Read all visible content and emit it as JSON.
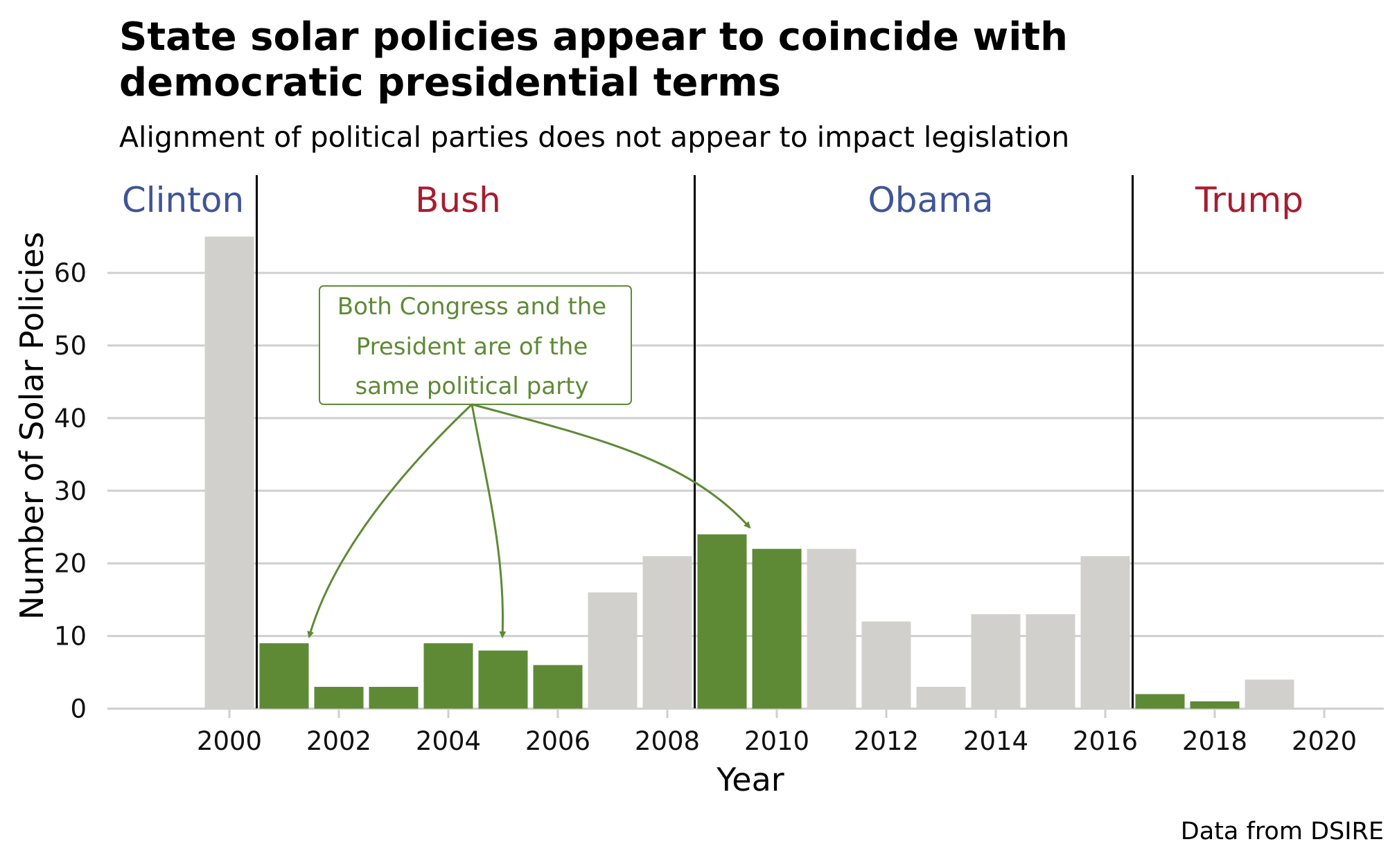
{
  "chart_data": {
    "type": "bar",
    "title": "State solar policies appear to coincide with democratic presidential terms",
    "title_lines": [
      "State solar policies appear to coincide with",
      "democratic presidential terms"
    ],
    "subtitle": "Alignment of political parties does not appear to impact legislation",
    "xlabel": "Year",
    "ylabel": "Number of Solar Policies",
    "caption": "Data from DSIRE",
    "x": [
      2000,
      2001,
      2002,
      2003,
      2004,
      2005,
      2006,
      2007,
      2008,
      2009,
      2010,
      2011,
      2012,
      2013,
      2014,
      2015,
      2016,
      2017,
      2018,
      2019
    ],
    "values": [
      65,
      9,
      3,
      3,
      9,
      8,
      6,
      16,
      21,
      24,
      22,
      22,
      12,
      3,
      13,
      13,
      21,
      2,
      1,
      4
    ],
    "highlighted": [
      false,
      true,
      true,
      true,
      true,
      true,
      true,
      false,
      false,
      true,
      true,
      false,
      false,
      false,
      false,
      false,
      false,
      true,
      true,
      false
    ],
    "xticks": [
      "2000",
      "2002",
      "2004",
      "2006",
      "2008",
      "2010",
      "2012",
      "2014",
      "2016",
      "2018",
      "2020"
    ],
    "yticks": [
      "0",
      "10",
      "20",
      "30",
      "40",
      "50",
      "60"
    ],
    "xlim": [
      1998.3,
      2021.2
    ],
    "ylim": [
      0,
      70
    ],
    "grid": "horizontal",
    "colors": {
      "highlight": "#5e8a36",
      "default": "#d1d0cc",
      "democrat": "#3f5597",
      "republican": "#a81c2e"
    },
    "presidents": [
      {
        "name": "Clinton",
        "party": "democrat",
        "boundary_after": 2000.5
      },
      {
        "name": "Bush",
        "party": "republican",
        "boundary_after": 2008.5
      },
      {
        "name": "Obama",
        "party": "democrat",
        "boundary_after": 2016.5
      },
      {
        "name": "Trump",
        "party": "republican"
      }
    ],
    "annotation": {
      "lines": [
        "Both Congress and the",
        "President are of the",
        "same political party"
      ],
      "arrow_targets": [
        2001,
        2005,
        2009
      ]
    }
  }
}
